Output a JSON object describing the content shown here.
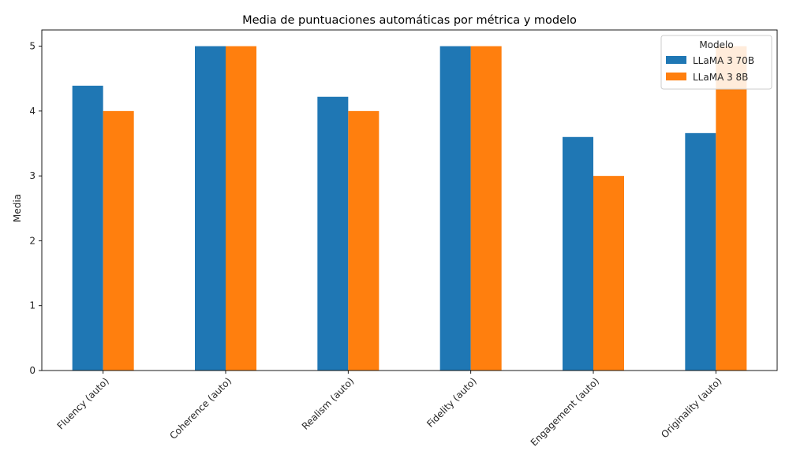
{
  "chart_data": {
    "type": "bar",
    "title": "Media de puntuaciones automáticas por métrica y modelo",
    "xlabel": "",
    "ylabel": "Media",
    "ylim": [
      0,
      5.25
    ],
    "yticks": [
      0,
      1,
      2,
      3,
      4,
      5
    ],
    "grid": false,
    "legend_position": "top-right",
    "legend_title": "Modelo",
    "categories": [
      "Fluency (auto)",
      "Coherence (auto)",
      "Realism (auto)",
      "Fidelity (auto)",
      "Engagement (auto)",
      "Originality (auto)"
    ],
    "series": [
      {
        "name": "LLaMA 3 70B",
        "color": "#1f77b4",
        "values": [
          4.39,
          5.0,
          4.22,
          5.0,
          3.6,
          3.66
        ]
      },
      {
        "name": "LLaMA 3 8B",
        "color": "#ff7f0e",
        "values": [
          4.0,
          5.0,
          4.0,
          5.0,
          3.0,
          5.0
        ]
      }
    ]
  }
}
